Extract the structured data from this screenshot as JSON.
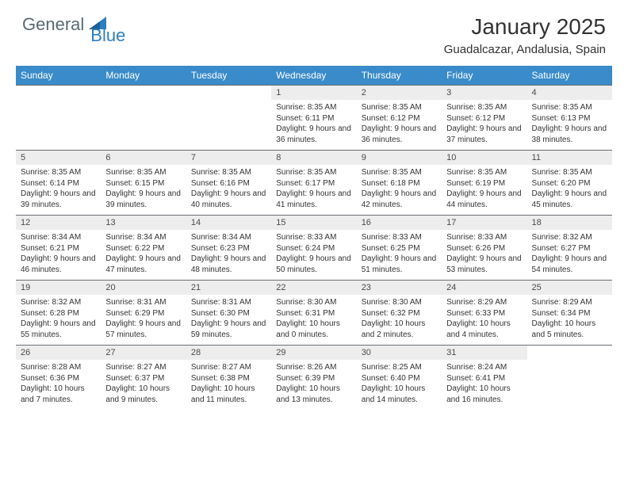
{
  "brand": {
    "part1": "General",
    "part2": "Blue"
  },
  "title": "January 2025",
  "location": "Guadalcazar, Andalusia, Spain",
  "colors": {
    "header_bg": "#3a8bc9",
    "header_text": "#ffffff",
    "daynum_bg": "#ededed",
    "text": "#333333",
    "logo_gray": "#5a6a72",
    "logo_blue": "#2d7fc1",
    "rule": "#6a6f73"
  },
  "day_names": [
    "Sunday",
    "Monday",
    "Tuesday",
    "Wednesday",
    "Thursday",
    "Friday",
    "Saturday"
  ],
  "weeks": [
    [
      null,
      null,
      null,
      {
        "n": "1",
        "sr": "8:35 AM",
        "ss": "6:11 PM",
        "dl": "9 hours and 36 minutes."
      },
      {
        "n": "2",
        "sr": "8:35 AM",
        "ss": "6:12 PM",
        "dl": "9 hours and 36 minutes."
      },
      {
        "n": "3",
        "sr": "8:35 AM",
        "ss": "6:12 PM",
        "dl": "9 hours and 37 minutes."
      },
      {
        "n": "4",
        "sr": "8:35 AM",
        "ss": "6:13 PM",
        "dl": "9 hours and 38 minutes."
      }
    ],
    [
      {
        "n": "5",
        "sr": "8:35 AM",
        "ss": "6:14 PM",
        "dl": "9 hours and 39 minutes."
      },
      {
        "n": "6",
        "sr": "8:35 AM",
        "ss": "6:15 PM",
        "dl": "9 hours and 39 minutes."
      },
      {
        "n": "7",
        "sr": "8:35 AM",
        "ss": "6:16 PM",
        "dl": "9 hours and 40 minutes."
      },
      {
        "n": "8",
        "sr": "8:35 AM",
        "ss": "6:17 PM",
        "dl": "9 hours and 41 minutes."
      },
      {
        "n": "9",
        "sr": "8:35 AM",
        "ss": "6:18 PM",
        "dl": "9 hours and 42 minutes."
      },
      {
        "n": "10",
        "sr": "8:35 AM",
        "ss": "6:19 PM",
        "dl": "9 hours and 44 minutes."
      },
      {
        "n": "11",
        "sr": "8:35 AM",
        "ss": "6:20 PM",
        "dl": "9 hours and 45 minutes."
      }
    ],
    [
      {
        "n": "12",
        "sr": "8:34 AM",
        "ss": "6:21 PM",
        "dl": "9 hours and 46 minutes."
      },
      {
        "n": "13",
        "sr": "8:34 AM",
        "ss": "6:22 PM",
        "dl": "9 hours and 47 minutes."
      },
      {
        "n": "14",
        "sr": "8:34 AM",
        "ss": "6:23 PM",
        "dl": "9 hours and 48 minutes."
      },
      {
        "n": "15",
        "sr": "8:33 AM",
        "ss": "6:24 PM",
        "dl": "9 hours and 50 minutes."
      },
      {
        "n": "16",
        "sr": "8:33 AM",
        "ss": "6:25 PM",
        "dl": "9 hours and 51 minutes."
      },
      {
        "n": "17",
        "sr": "8:33 AM",
        "ss": "6:26 PM",
        "dl": "9 hours and 53 minutes."
      },
      {
        "n": "18",
        "sr": "8:32 AM",
        "ss": "6:27 PM",
        "dl": "9 hours and 54 minutes."
      }
    ],
    [
      {
        "n": "19",
        "sr": "8:32 AM",
        "ss": "6:28 PM",
        "dl": "9 hours and 55 minutes."
      },
      {
        "n": "20",
        "sr": "8:31 AM",
        "ss": "6:29 PM",
        "dl": "9 hours and 57 minutes."
      },
      {
        "n": "21",
        "sr": "8:31 AM",
        "ss": "6:30 PM",
        "dl": "9 hours and 59 minutes."
      },
      {
        "n": "22",
        "sr": "8:30 AM",
        "ss": "6:31 PM",
        "dl": "10 hours and 0 minutes."
      },
      {
        "n": "23",
        "sr": "8:30 AM",
        "ss": "6:32 PM",
        "dl": "10 hours and 2 minutes."
      },
      {
        "n": "24",
        "sr": "8:29 AM",
        "ss": "6:33 PM",
        "dl": "10 hours and 4 minutes."
      },
      {
        "n": "25",
        "sr": "8:29 AM",
        "ss": "6:34 PM",
        "dl": "10 hours and 5 minutes."
      }
    ],
    [
      {
        "n": "26",
        "sr": "8:28 AM",
        "ss": "6:36 PM",
        "dl": "10 hours and 7 minutes."
      },
      {
        "n": "27",
        "sr": "8:27 AM",
        "ss": "6:37 PM",
        "dl": "10 hours and 9 minutes."
      },
      {
        "n": "28",
        "sr": "8:27 AM",
        "ss": "6:38 PM",
        "dl": "10 hours and 11 minutes."
      },
      {
        "n": "29",
        "sr": "8:26 AM",
        "ss": "6:39 PM",
        "dl": "10 hours and 13 minutes."
      },
      {
        "n": "30",
        "sr": "8:25 AM",
        "ss": "6:40 PM",
        "dl": "10 hours and 14 minutes."
      },
      {
        "n": "31",
        "sr": "8:24 AM",
        "ss": "6:41 PM",
        "dl": "10 hours and 16 minutes."
      },
      null
    ]
  ],
  "labels": {
    "sunrise": "Sunrise:",
    "sunset": "Sunset:",
    "daylight": "Daylight:"
  }
}
